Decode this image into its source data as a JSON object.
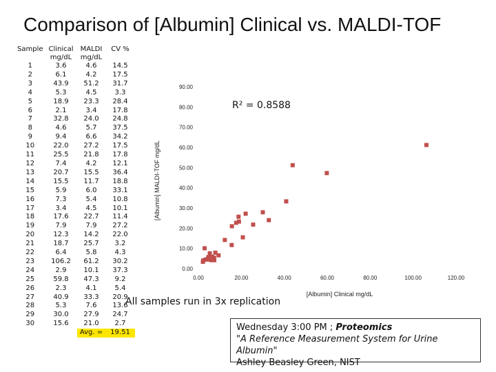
{
  "title": "Comparison of [Albumin] Clinical vs. MALDI-TOF",
  "table": {
    "headers": [
      "Sample",
      "Clinical mg/dL",
      "MALDI mg/dL",
      "CV %"
    ],
    "rows": [
      [
        "1",
        "3.6",
        "4.6",
        "14.5"
      ],
      [
        "2",
        "6.1",
        "4.2",
        "17.5"
      ],
      [
        "3",
        "43.9",
        "51.2",
        "31.7"
      ],
      [
        "4",
        "5.3",
        "4.5",
        "3.3"
      ],
      [
        "5",
        "18.9",
        "23.3",
        "28.4"
      ],
      [
        "6",
        "2.1",
        "3.4",
        "17.8"
      ],
      [
        "7",
        "32.8",
        "24.0",
        "24.8"
      ],
      [
        "8",
        "4.6",
        "5.7",
        "37.5"
      ],
      [
        "9",
        "9.4",
        "6.6",
        "34.2"
      ],
      [
        "10",
        "22.0",
        "27.2",
        "17.5"
      ],
      [
        "11",
        "25.5",
        "21.8",
        "17.8"
      ],
      [
        "12",
        "7.4",
        "4.2",
        "12.1"
      ],
      [
        "13",
        "20.7",
        "15.5",
        "36.4"
      ],
      [
        "14",
        "15.5",
        "11.7",
        "18.8"
      ],
      [
        "15",
        "5.9",
        "6.0",
        "33.1"
      ],
      [
        "16",
        "7.3",
        "5.4",
        "10.8"
      ],
      [
        "17",
        "3.4",
        "4.5",
        "10.1"
      ],
      [
        "18",
        "17.6",
        "22.7",
        "11.4"
      ],
      [
        "19",
        "7.9",
        "7.9",
        "27.2"
      ],
      [
        "20",
        "12.3",
        "14.2",
        "22.0"
      ],
      [
        "21",
        "18.7",
        "25.7",
        "3.2"
      ],
      [
        "22",
        "6.4",
        "5.8",
        "4.3"
      ],
      [
        "23",
        "106.2",
        "61.2",
        "30.2"
      ],
      [
        "24",
        "2.9",
        "10.1",
        "37.3"
      ],
      [
        "25",
        "59.8",
        "47.3",
        "9.2"
      ],
      [
        "26",
        "2.3",
        "4.1",
        "5.4"
      ],
      [
        "27",
        "40.9",
        "33.3",
        "20.9"
      ],
      [
        "28",
        "5.3",
        "7.6",
        "13.6"
      ],
      [
        "29",
        "30.0",
        "27.9",
        "24.7"
      ],
      [
        "30",
        "15.6",
        "21.0",
        "2.7"
      ]
    ],
    "avg_label": "Avg. =",
    "avg_value": "19.51"
  },
  "chart_data": {
    "type": "scatter",
    "title": "",
    "xlabel": "[Albumin] Clinical mg/dL",
    "ylabel": "[Albumin] MALDI-TOF mg/dL",
    "xlim": [
      0,
      120
    ],
    "ylim": [
      0,
      90
    ],
    "xticks": [
      "0.00",
      "20.00",
      "40.00",
      "60.00",
      "80.00",
      "100.00",
      "120.00"
    ],
    "yticks": [
      "0.00",
      "10.00",
      "20.00",
      "30.00",
      "40.00",
      "50.00",
      "60.00",
      "70.00",
      "80.00",
      "90.00"
    ],
    "annotation": "R² = 0.8588",
    "marker_color": "#c0504d",
    "points": [
      [
        3.6,
        4.6
      ],
      [
        6.1,
        4.2
      ],
      [
        43.9,
        51.2
      ],
      [
        5.3,
        4.5
      ],
      [
        18.9,
        23.3
      ],
      [
        2.1,
        3.4
      ],
      [
        32.8,
        24.0
      ],
      [
        4.6,
        5.7
      ],
      [
        9.4,
        6.6
      ],
      [
        22.0,
        27.2
      ],
      [
        25.5,
        21.8
      ],
      [
        7.4,
        4.2
      ],
      [
        20.7,
        15.5
      ],
      [
        15.5,
        11.7
      ],
      [
        5.9,
        6.0
      ],
      [
        7.3,
        5.4
      ],
      [
        3.4,
        4.5
      ],
      [
        17.6,
        22.7
      ],
      [
        7.9,
        7.9
      ],
      [
        12.3,
        14.2
      ],
      [
        18.7,
        25.7
      ],
      [
        6.4,
        5.8
      ],
      [
        106.2,
        61.2
      ],
      [
        2.9,
        10.1
      ],
      [
        59.8,
        47.3
      ],
      [
        2.3,
        4.1
      ],
      [
        40.9,
        33.3
      ],
      [
        5.3,
        7.6
      ],
      [
        30.0,
        27.9
      ],
      [
        15.6,
        21.0
      ]
    ]
  },
  "note": "All samples run in 3x replication",
  "reference": {
    "line1_prefix": "Wednesday 3:00 PM ; ",
    "journal": "Proteomics",
    "quote": "\"A Reference Measurement System for Urine Albumin\"",
    "author": "Ashley Beasley Green,  NIST"
  }
}
